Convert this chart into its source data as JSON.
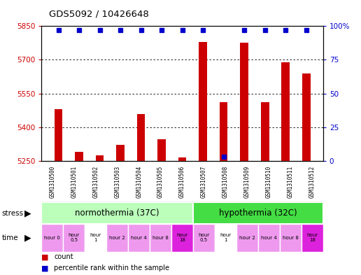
{
  "title": "GDS5092 / 10426648",
  "samples": [
    "GSM1310500",
    "GSM1310501",
    "GSM1310502",
    "GSM1310503",
    "GSM1310504",
    "GSM1310505",
    "GSM1310506",
    "GSM1310507",
    "GSM1310508",
    "GSM1310509",
    "GSM1310510",
    "GSM1310511",
    "GSM1310512"
  ],
  "counts": [
    5480,
    5290,
    5275,
    5320,
    5460,
    5345,
    5265,
    5780,
    5510,
    5775,
    5510,
    5690,
    5640
  ],
  "percentile_ranks": [
    99,
    99,
    99,
    99,
    99,
    99,
    99,
    99,
    0,
    99,
    99,
    99,
    99
  ],
  "ylim_left": [
    5250,
    5850
  ],
  "ylim_right": [
    0,
    100
  ],
  "yticks_left": [
    5250,
    5400,
    5550,
    5700,
    5850
  ],
  "yticks_right": [
    0,
    25,
    50,
    75,
    100
  ],
  "bar_color": "#cc0000",
  "dot_color": "#0000cc",
  "grid_color": "#000000",
  "stress_labels": [
    "normothermia (37C)",
    "hypothermia (32C)"
  ],
  "stress_colors": [
    "#bbffbb",
    "#44dd44"
  ],
  "stress_n": [
    7,
    6
  ],
  "time_labels": [
    "hour 0",
    "hour\n0.5",
    "hour\n1",
    "hour 2",
    "hour 4",
    "hour 8",
    "hour\n18",
    "hour\n0.5",
    "hour\n1",
    "hour 2",
    "hour 4",
    "hour 8",
    "hour\n18"
  ],
  "time_colors": [
    "#ee99ee",
    "#ee99ee",
    "#ffffff",
    "#ee99ee",
    "#ee99ee",
    "#ee99ee",
    "#dd22dd",
    "#ee99ee",
    "#ffffff",
    "#ee99ee",
    "#ee99ee",
    "#ee99ee",
    "#dd22dd"
  ],
  "bg_color": "#ffffff",
  "plot_bg": "#ffffff",
  "left_label_color": "#cc0000",
  "right_label_color": "#0000cc",
  "label_area_color": "#cccccc",
  "n_samples": 13,
  "bar_width": 0.4,
  "dot_size": 5
}
